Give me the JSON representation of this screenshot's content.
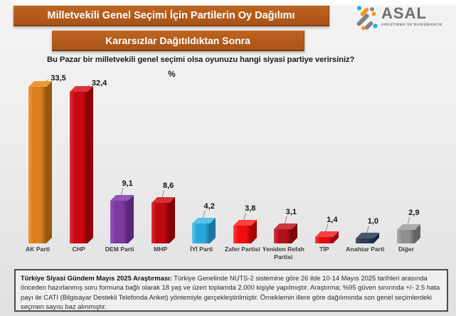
{
  "header": {
    "title_banner": "Milletvekili Genel Seçimi İçin Partilerin Oy Dağılımı",
    "subtitle_banner": "Kararsızlar Dağıtıldıktan Sonra",
    "banner_color": "#b05a1a",
    "logo": {
      "name": "ASAL",
      "tagline": "ARAŞTIRMA VE DANIŞMANLIK",
      "colors": {
        "gray": "#808285",
        "orange": "#f7941d",
        "blue": "#29abe2",
        "text": "#6d6e71"
      }
    }
  },
  "question": "Bu Pazar bir milletvekili genel seçimi olsa oyunuzu hangi siyasi partiye verirsiniz?",
  "unit_label": "%",
  "chart_data": {
    "type": "bar",
    "style": "3d-column",
    "unit": "%",
    "title": "Milletvekili Genel Seçimi İçin Partilerin Oy Dağılımı — Kararsızlar Dağıtıldıktan Sonra",
    "xlabel": "",
    "ylabel": "%",
    "ylim": [
      0,
      36
    ],
    "grid": false,
    "legend": "none",
    "categories": [
      "AK Parti",
      "CHP",
      "DEM Parti",
      "MHP",
      "İYİ Parti",
      "Zafer Partisi",
      "Yeniden Refah Partisi",
      "TİP",
      "Anahtar Parti",
      "Diğer"
    ],
    "values": [
      33.5,
      32.4,
      9.1,
      8.6,
      4.2,
      3.8,
      3.1,
      1.4,
      1.0,
      2.9
    ],
    "value_labels": [
      "33,5",
      "32,4",
      "9,1",
      "8,6",
      "4,2",
      "3,8",
      "3,1",
      "1,4",
      "1,0",
      "2,9"
    ],
    "colors": [
      {
        "front": "#d8811e",
        "side": "#99570c",
        "top": "#e89a38"
      },
      {
        "front": "#c8090f",
        "side": "#8a0205",
        "top": "#dd3238"
      },
      {
        "front": "#7b3ba0",
        "side": "#562878",
        "top": "#9256b8"
      },
      {
        "front": "#c00a10",
        "side": "#850104",
        "top": "#d63035"
      },
      {
        "front": "#29a7dd",
        "side": "#1b76a3",
        "top": "#5bc2ec"
      },
      {
        "front": "#f20e0e",
        "side": "#a80404",
        "top": "#ff4040"
      },
      {
        "front": "#b3121a",
        "side": "#7a060c",
        "top": "#cc3840"
      },
      {
        "front": "#e20d10",
        "side": "#9e0508",
        "top": "#f54043"
      },
      {
        "front": "#2f3d52",
        "side": "#1c2634",
        "top": "#465870"
      },
      {
        "front": "#8f8f8f",
        "side": "#646464",
        "top": "#acacac"
      }
    ]
  },
  "footnote": {
    "bold_prefix": "Türkiye Siyasi Gündem Mayıs 2025 Araştırması:",
    "text": " Türkiye Genelinde NUTS-2 sistemine göre 26 ilde 10-14 Mayıs 2025 tarihleri arasında önceden hazırlanmış soru formuna bağlı olarak 18 yaş ve üzeri toplamda 2.000 kişiyle yapılmıştır. Araştırma; %95 güven sınırında +/- 2.5 hata payı ile CATI (Bilgisayar Destekli Telefonda Anket) yöntemiyle gerçekleştirilmiştir. Örneklemin illere göre dağılımında son genel seçimlerdeki seçmen sayısı baz alınmıştır."
  }
}
